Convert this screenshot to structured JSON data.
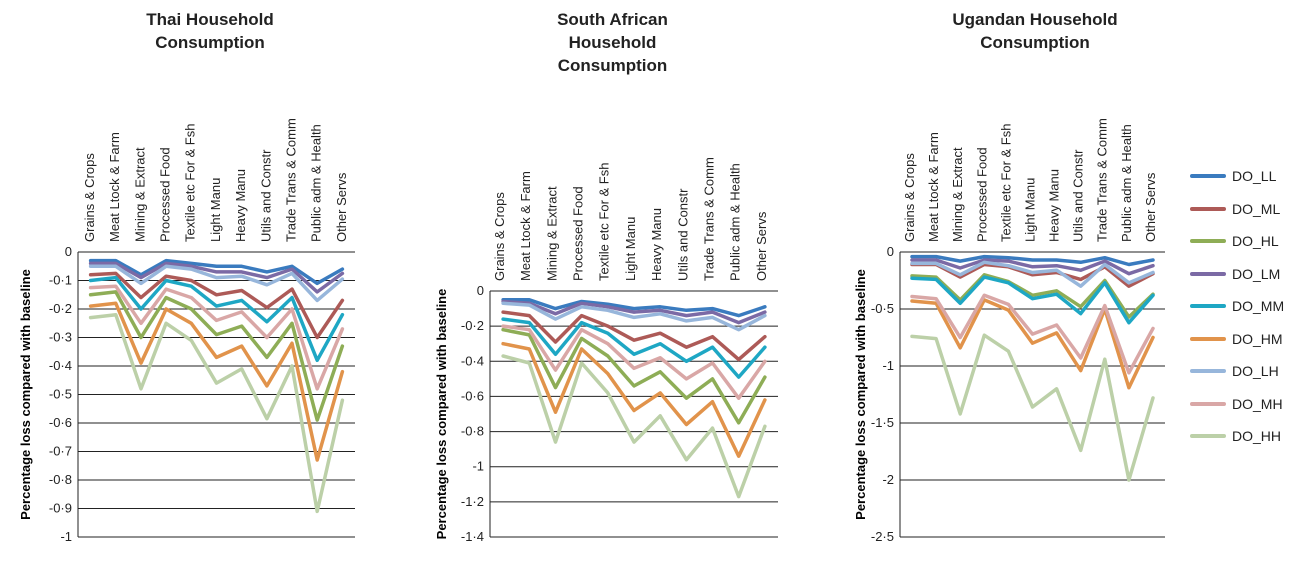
{
  "chart_data": [
    {
      "type": "line",
      "title": "Thai Household Consumption",
      "ylabel": "Percentage loss compared with baseline",
      "ylim": [
        -1,
        0
      ],
      "yticks": [
        "0",
        "-0·1",
        "-0·2",
        "-0·3",
        "-0·4",
        "-0·5",
        "-0·6",
        "-0·7",
        "-0·8",
        "-0·9",
        "-1"
      ],
      "categories": [
        "Grains & Crops",
        "Meat Ltock & Farm",
        "Mining & Extract",
        "Processed Food",
        "Textile etc For & Fsh",
        "Light Manu",
        "Heavy Manu",
        "Utils and Constr",
        "Trade Trans & Comm",
        "Public adm & Health",
        "Other Servs"
      ],
      "series": [
        {
          "name": "DO_LL",
          "values": [
            -0.03,
            -0.03,
            -0.08,
            -0.03,
            -0.04,
            -0.05,
            -0.05,
            -0.07,
            -0.05,
            -0.11,
            -0.06
          ]
        },
        {
          "name": "DO_ML",
          "values": [
            -0.08,
            -0.075,
            -0.16,
            -0.085,
            -0.1,
            -0.15,
            -0.135,
            -0.195,
            -0.13,
            -0.3,
            -0.17
          ]
        },
        {
          "name": "DO_HL",
          "values": [
            -0.15,
            -0.14,
            -0.3,
            -0.16,
            -0.2,
            -0.29,
            -0.26,
            -0.37,
            -0.25,
            -0.59,
            -0.33
          ]
        },
        {
          "name": "DO_LM",
          "values": [
            -0.04,
            -0.04,
            -0.09,
            -0.04,
            -0.05,
            -0.07,
            -0.07,
            -0.09,
            -0.06,
            -0.14,
            -0.075
          ]
        },
        {
          "name": "DO_MM",
          "values": [
            -0.1,
            -0.09,
            -0.2,
            -0.1,
            -0.12,
            -0.19,
            -0.17,
            -0.245,
            -0.16,
            -0.38,
            -0.22
          ]
        },
        {
          "name": "DO_HM",
          "values": [
            -0.19,
            -0.18,
            -0.39,
            -0.2,
            -0.25,
            -0.37,
            -0.33,
            -0.47,
            -0.32,
            -0.73,
            -0.42
          ]
        },
        {
          "name": "DO_LH",
          "values": [
            -0.05,
            -0.05,
            -0.11,
            -0.05,
            -0.06,
            -0.09,
            -0.085,
            -0.115,
            -0.075,
            -0.17,
            -0.095
          ]
        },
        {
          "name": "DO_MH",
          "values": [
            -0.125,
            -0.12,
            -0.25,
            -0.13,
            -0.16,
            -0.24,
            -0.21,
            -0.3,
            -0.2,
            -0.48,
            -0.27
          ]
        },
        {
          "name": "DO_HH",
          "values": [
            -0.23,
            -0.22,
            -0.48,
            -0.25,
            -0.31,
            -0.46,
            -0.41,
            -0.585,
            -0.4,
            -0.91,
            -0.52
          ]
        }
      ]
    },
    {
      "type": "line",
      "title": "South African Household Consumption",
      "ylabel": "Percentage loss compared with baseline",
      "ylim": [
        -1.4,
        0
      ],
      "yticks": [
        "0",
        "-0·2",
        "-0·4",
        "-0·6",
        "-0·8",
        "-1",
        "-1·2",
        "-1·4"
      ],
      "categories": [
        "Grains & Crops",
        "Meat Ltock & Farm",
        "Mining & Extract",
        "Processed Food",
        "Textile etc For & Fsh",
        "Light Manu",
        "Heavy Manu",
        "Utils and Constr",
        "Trade Trans & Comm",
        "Public adm & Health",
        "Other Servs"
      ],
      "series": [
        {
          "name": "DO_LL",
          "values": [
            -0.05,
            -0.05,
            -0.1,
            -0.06,
            -0.075,
            -0.1,
            -0.09,
            -0.11,
            -0.1,
            -0.14,
            -0.09
          ]
        },
        {
          "name": "DO_ML",
          "values": [
            -0.12,
            -0.14,
            -0.29,
            -0.14,
            -0.2,
            -0.28,
            -0.24,
            -0.32,
            -0.26,
            -0.39,
            -0.26
          ]
        },
        {
          "name": "DO_HL",
          "values": [
            -0.22,
            -0.25,
            -0.55,
            -0.27,
            -0.37,
            -0.54,
            -0.46,
            -0.61,
            -0.5,
            -0.75,
            -0.49
          ]
        },
        {
          "name": "DO_LM",
          "values": [
            -0.06,
            -0.07,
            -0.13,
            -0.07,
            -0.09,
            -0.12,
            -0.11,
            -0.14,
            -0.12,
            -0.18,
            -0.12
          ]
        },
        {
          "name": "DO_MM",
          "values": [
            -0.16,
            -0.18,
            -0.36,
            -0.18,
            -0.24,
            -0.36,
            -0.3,
            -0.4,
            -0.32,
            -0.49,
            -0.32
          ]
        },
        {
          "name": "DO_HM",
          "values": [
            -0.3,
            -0.33,
            -0.69,
            -0.33,
            -0.47,
            -0.68,
            -0.58,
            -0.76,
            -0.63,
            -0.94,
            -0.62
          ]
        },
        {
          "name": "DO_LH",
          "values": [
            -0.07,
            -0.08,
            -0.16,
            -0.09,
            -0.11,
            -0.15,
            -0.13,
            -0.17,
            -0.15,
            -0.22,
            -0.14
          ]
        },
        {
          "name": "DO_MH",
          "values": [
            -0.2,
            -0.22,
            -0.45,
            -0.22,
            -0.3,
            -0.44,
            -0.38,
            -0.5,
            -0.41,
            -0.61,
            -0.4
          ]
        },
        {
          "name": "DO_HH",
          "values": [
            -0.37,
            -0.41,
            -0.86,
            -0.41,
            -0.58,
            -0.86,
            -0.71,
            -0.96,
            -0.78,
            -1.17,
            -0.77
          ]
        }
      ]
    },
    {
      "type": "line",
      "title": "Ugandan Household Consumption",
      "ylabel": "Percentage loss compared with baseline",
      "ylim": [
        -2.5,
        0
      ],
      "yticks": [
        "0",
        "-0·5",
        "-1",
        "-1·5",
        "-2",
        "-2·5"
      ],
      "categories": [
        "Grains & Crops",
        "Meat Ltock & Farm",
        "Mining & Extract",
        "Processed Food",
        "Textile etc For & Fsh",
        "Light Manu",
        "Heavy Manu",
        "Utils and Constr",
        "Trade Trans & Comm",
        "Public adm & Health",
        "Other Servs"
      ],
      "series": [
        {
          "name": "DO_LL",
          "values": [
            -0.04,
            -0.04,
            -0.08,
            -0.04,
            -0.05,
            -0.07,
            -0.07,
            -0.09,
            -0.05,
            -0.11,
            -0.07
          ]
        },
        {
          "name": "DO_ML",
          "values": [
            -0.11,
            -0.11,
            -0.22,
            -0.11,
            -0.13,
            -0.2,
            -0.18,
            -0.24,
            -0.13,
            -0.3,
            -0.19
          ]
        },
        {
          "name": "DO_HL",
          "values": [
            -0.21,
            -0.22,
            -0.42,
            -0.2,
            -0.26,
            -0.38,
            -0.34,
            -0.48,
            -0.25,
            -0.57,
            -0.37
          ]
        },
        {
          "name": "DO_LM",
          "values": [
            -0.07,
            -0.07,
            -0.14,
            -0.07,
            -0.08,
            -0.13,
            -0.12,
            -0.16,
            -0.08,
            -0.19,
            -0.12
          ]
        },
        {
          "name": "DO_MM",
          "values": [
            -0.23,
            -0.24,
            -0.45,
            -0.22,
            -0.27,
            -0.41,
            -0.37,
            -0.54,
            -0.27,
            -0.62,
            -0.38
          ]
        },
        {
          "name": "DO_HM",
          "values": [
            -0.43,
            -0.45,
            -0.84,
            -0.42,
            -0.51,
            -0.8,
            -0.71,
            -1.04,
            -0.5,
            -1.19,
            -0.75
          ]
        },
        {
          "name": "DO_LH",
          "values": [
            -0.1,
            -0.1,
            -0.2,
            -0.09,
            -0.12,
            -0.18,
            -0.16,
            -0.3,
            -0.11,
            -0.27,
            -0.18
          ]
        },
        {
          "name": "DO_MH",
          "values": [
            -0.39,
            -0.41,
            -0.75,
            -0.38,
            -0.46,
            -0.72,
            -0.64,
            -0.93,
            -0.47,
            -1.06,
            -0.67
          ]
        },
        {
          "name": "DO_HH",
          "values": [
            -0.74,
            -0.76,
            -1.42,
            -0.73,
            -0.87,
            -1.36,
            -1.2,
            -1.74,
            -0.94,
            -2.0,
            -1.28
          ]
        }
      ]
    }
  ],
  "colors": {
    "DO_LL": "#3a7bbf",
    "DO_ML": "#ad5a57",
    "DO_HL": "#8ead56",
    "DO_LM": "#7b6aa5",
    "DO_MM": "#1ea7c4",
    "DO_HM": "#e1934b",
    "DO_LH": "#97b6db",
    "DO_MH": "#d9a7a6",
    "DO_HH": "#bcd0a8"
  },
  "legend": [
    "DO_LL",
    "DO_ML",
    "DO_HL",
    "DO_LM",
    "DO_MM",
    "DO_HM",
    "DO_LH",
    "DO_MH",
    "DO_HH"
  ]
}
